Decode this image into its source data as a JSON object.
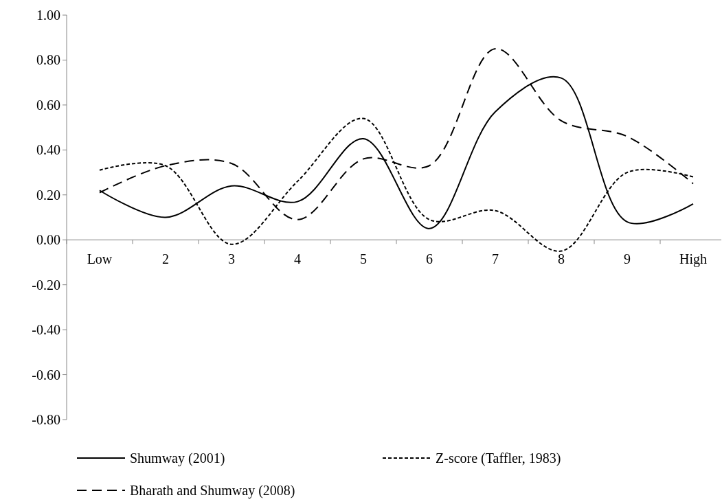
{
  "chart_data": {
    "type": "line",
    "categories": [
      "Low",
      "2",
      "3",
      "4",
      "5",
      "6",
      "7",
      "8",
      "9",
      "High"
    ],
    "ylim": [
      -0.8,
      1
    ],
    "yticks": [
      {
        "value": -0.8,
        "label": "-0.80"
      },
      {
        "value": -0.6,
        "label": "-0.60"
      },
      {
        "value": -0.4,
        "label": "-0.40"
      },
      {
        "value": -0.2,
        "label": "-0.20"
      },
      {
        "value": 0,
        "label": "0.00"
      },
      {
        "value": 0.2,
        "label": "0.20"
      },
      {
        "value": 0.4,
        "label": "0.40"
      },
      {
        "value": 0.6,
        "label": "0.60"
      },
      {
        "value": 0.8,
        "label": "0.80"
      },
      {
        "value": 1,
        "label": "1.00"
      }
    ],
    "grid": false,
    "legend": "bottom",
    "marker": "none",
    "series": [
      {
        "name": "Shumway (2001)",
        "color": "#000000",
        "line_style": "solid",
        "values": [
          0.22,
          0.1,
          0.24,
          0.17,
          0.45,
          0.05,
          0.57,
          0.72,
          0.08,
          0.16
        ]
      },
      {
        "name": "Z-score (Taffler, 1983)",
        "color": "#000000",
        "line_style": "dotted",
        "values": [
          0.31,
          0.33,
          -0.02,
          0.26,
          0.54,
          0.09,
          0.13,
          -0.05,
          0.3,
          0.28
        ]
      },
      {
        "name": "Bharath and Shumway (2008)",
        "color": "#000000",
        "line_style": "dashed",
        "values": [
          0.21,
          0.33,
          0.34,
          0.09,
          0.36,
          0.33,
          0.85,
          0.53,
          0.46,
          0.25
        ]
      }
    ]
  }
}
